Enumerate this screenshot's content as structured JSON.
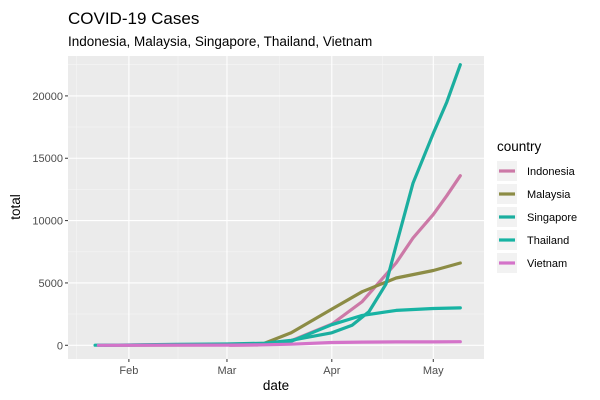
{
  "chart_data": {
    "type": "line",
    "title": "COVID-19 Cases",
    "subtitle": "Indonesia, Malaysia, Singapore, Thailand, Vietnam",
    "xlabel": "date",
    "ylabel": "total",
    "x_ticks": [
      "Feb",
      "Mar",
      "Apr",
      "May"
    ],
    "x_tick_dates": [
      "2020-02-01",
      "2020-03-01",
      "2020-04-01",
      "2020-05-01"
    ],
    "xlim": [
      "2020-01-14",
      "2020-05-16"
    ],
    "y_ticks": [
      0,
      5000,
      10000,
      15000,
      20000
    ],
    "ylim": [
      -1100,
      23200
    ],
    "grid": true,
    "legend": {
      "title": "country",
      "position": "right"
    },
    "series": [
      {
        "name": "Indonesia",
        "color": "#CC79A7",
        "points": [
          [
            "2020-03-02",
            2
          ],
          [
            "2020-03-10",
            20
          ],
          [
            "2020-03-20",
            370
          ],
          [
            "2020-04-01",
            1700
          ],
          [
            "2020-04-10",
            3500
          ],
          [
            "2020-04-20",
            6600
          ],
          [
            "2020-04-25",
            8600
          ],
          [
            "2020-05-01",
            10500
          ],
          [
            "2020-05-05",
            12000
          ],
          [
            "2020-05-09",
            13600
          ]
        ]
      },
      {
        "name": "Malaysia",
        "color": "#8C8C45",
        "points": [
          [
            "2020-01-25",
            3
          ],
          [
            "2020-02-15",
            22
          ],
          [
            "2020-03-01",
            29
          ],
          [
            "2020-03-12",
            150
          ],
          [
            "2020-03-20",
            1000
          ],
          [
            "2020-04-01",
            2900
          ],
          [
            "2020-04-10",
            4300
          ],
          [
            "2020-04-20",
            5400
          ],
          [
            "2020-05-01",
            6000
          ],
          [
            "2020-05-09",
            6600
          ]
        ]
      },
      {
        "name": "Singapore",
        "color": "#1BAE9F",
        "points": [
          [
            "2020-01-23",
            1
          ],
          [
            "2020-02-15",
            70
          ],
          [
            "2020-03-01",
            105
          ],
          [
            "2020-03-12",
            170
          ],
          [
            "2020-03-20",
            400
          ],
          [
            "2020-04-01",
            1000
          ],
          [
            "2020-04-07",
            1600
          ],
          [
            "2020-04-12",
            2700
          ],
          [
            "2020-04-17",
            4900
          ],
          [
            "2020-04-20",
            8000
          ],
          [
            "2020-04-25",
            13000
          ],
          [
            "2020-05-01",
            17000
          ],
          [
            "2020-05-05",
            19500
          ],
          [
            "2020-05-09",
            22500
          ]
        ]
      },
      {
        "name": "Thailand",
        "color": "#17B3A3",
        "points": [
          [
            "2020-01-22",
            4
          ],
          [
            "2020-02-15",
            35
          ],
          [
            "2020-03-01",
            42
          ],
          [
            "2020-03-12",
            75
          ],
          [
            "2020-03-20",
            320
          ],
          [
            "2020-04-01",
            1650
          ],
          [
            "2020-04-10",
            2400
          ],
          [
            "2020-04-20",
            2800
          ],
          [
            "2020-05-01",
            2950
          ],
          [
            "2020-05-09",
            3000
          ]
        ]
      },
      {
        "name": "Vietnam",
        "color": "#D473C9",
        "points": [
          [
            "2020-01-23",
            2
          ],
          [
            "2020-02-15",
            16
          ],
          [
            "2020-03-01",
            16
          ],
          [
            "2020-03-12",
            40
          ],
          [
            "2020-03-20",
            90
          ],
          [
            "2020-04-01",
            220
          ],
          [
            "2020-04-10",
            255
          ],
          [
            "2020-04-20",
            268
          ],
          [
            "2020-05-01",
            270
          ],
          [
            "2020-05-09",
            288
          ]
        ]
      }
    ]
  }
}
